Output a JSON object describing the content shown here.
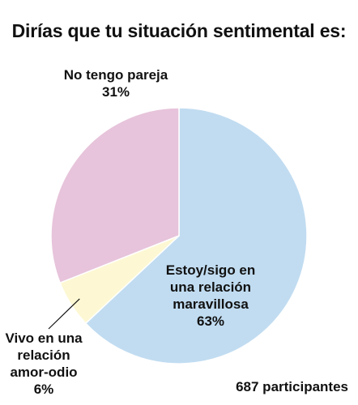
{
  "title": "Dirías que tu situación sentimental es:",
  "participants": "687 participantes",
  "chart_data": {
    "type": "pie",
    "title": "Dirías que tu situación sentimental es:",
    "start_angle_deg": 0,
    "direction": "clockwise",
    "slices": [
      {
        "label_lines": [
          "Estoy/sigo en",
          "una relación",
          "maravillosa"
        ],
        "value": 63,
        "value_label": "63%",
        "color": "#c1dcf1"
      },
      {
        "label_lines": [
          "Vivo en una",
          "relación",
          "amor-odio"
        ],
        "value": 6,
        "value_label": "6%",
        "color": "#fdf8d3"
      },
      {
        "label_lines": [
          "No tengo pareja"
        ],
        "value": 31,
        "value_label": "31%",
        "color": "#e7c4db"
      }
    ],
    "note": "687 participantes"
  }
}
